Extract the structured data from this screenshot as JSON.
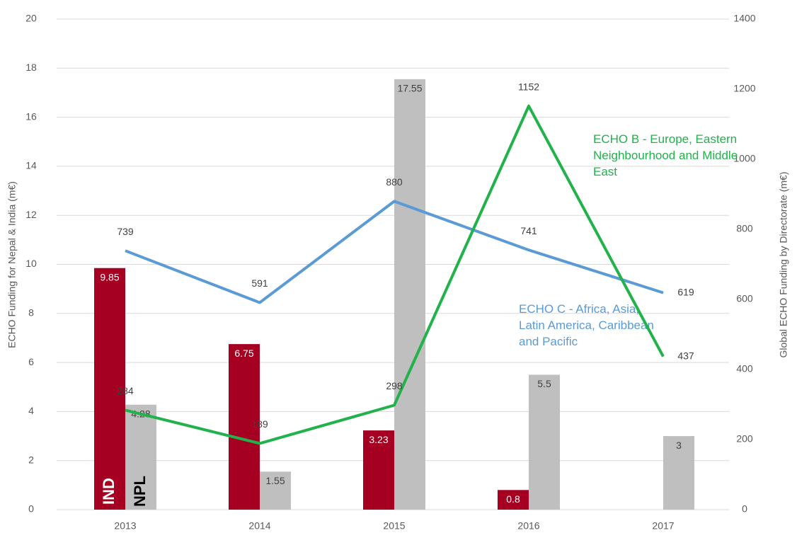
{
  "chart_data": {
    "type": "bar_line",
    "categories": [
      "2013",
      "2014",
      "2015",
      "2016",
      "2017"
    ],
    "y_label": "ECHO Funding for Nepal & India (m€)",
    "y2_label": "Global ECHO Funding by Directorate (m€)",
    "ylim": [
      0,
      20
    ],
    "yticks": [
      0,
      2,
      4,
      6,
      8,
      10,
      12,
      14,
      16,
      18,
      20
    ],
    "y2lim": [
      0,
      1400
    ],
    "y2ticks": [
      0,
      200,
      400,
      600,
      800,
      1000,
      1200,
      1400
    ],
    "grid": true,
    "series": [
      {
        "name": "IND",
        "type": "bar",
        "color": "#a50021",
        "values": [
          9.85,
          6.75,
          3.23,
          0.8,
          null
        ]
      },
      {
        "name": "NPL",
        "type": "bar",
        "color": "#bfbfbf",
        "values": [
          4.28,
          1.55,
          17.55,
          5.5,
          3
        ]
      },
      {
        "name": "ECHO C - Africa, Asia, Latin America, Caribbean and Pacific",
        "type": "line",
        "axis": "y2",
        "color": "#5b9bd5",
        "values": [
          739,
          591,
          880,
          741,
          619
        ]
      },
      {
        "name": "ECHO B - Europe, Eastern Neighbourhood and Middle East",
        "type": "line",
        "axis": "y2",
        "color": "#21b24b",
        "values": [
          284,
          189,
          298,
          1152,
          437
        ]
      }
    ]
  }
}
